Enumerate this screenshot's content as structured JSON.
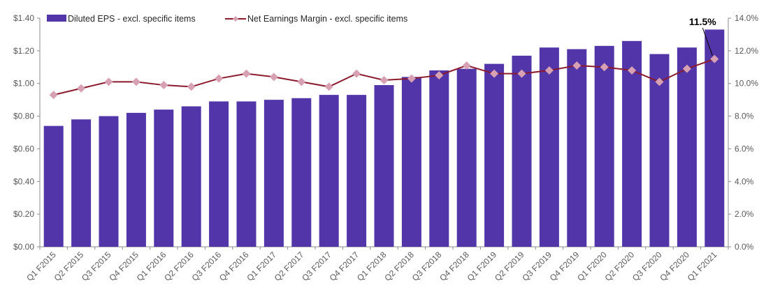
{
  "chart_data": {
    "type": "bar",
    "categories": [
      "Q1 F2015",
      "Q2 F2015",
      "Q3 F2015",
      "Q4 F2015",
      "Q1 F2016",
      "Q2 F2016",
      "Q3 F2016",
      "Q4 F2016",
      "Q1 F2017",
      "Q2 F2017",
      "Q3 F2017",
      "Q4 F2017",
      "Q1 F2018",
      "Q2 F2018",
      "Q3 F2018",
      "Q4 F2018",
      "Q1 F2019",
      "Q2 F2019",
      "Q3 F2019",
      "Q4 F2019",
      "Q1 F2020",
      "Q2 F2020",
      "Q3 F2020",
      "Q4 F2020",
      "Q1 F2021"
    ],
    "series": [
      {
        "name": "Diluted EPS - excl. specific items",
        "type": "bar",
        "axis": "left",
        "color": "#5235a8",
        "values": [
          0.74,
          0.78,
          0.8,
          0.82,
          0.84,
          0.86,
          0.89,
          0.89,
          0.9,
          0.91,
          0.93,
          0.93,
          0.99,
          1.04,
          1.08,
          1.09,
          1.12,
          1.17,
          1.22,
          1.21,
          1.23,
          1.26,
          1.18,
          1.22,
          1.33
        ]
      },
      {
        "name": "Net Earnings Margin - excl. specific items",
        "type": "line",
        "axis": "right",
        "color": "#8b1a2c",
        "marker_color": "#d7a1b3",
        "values": [
          9.3,
          9.7,
          10.1,
          10.1,
          9.9,
          9.8,
          10.3,
          10.6,
          10.4,
          10.1,
          9.8,
          10.6,
          10.2,
          10.3,
          10.5,
          11.1,
          10.6,
          10.6,
          10.8,
          11.1,
          11.0,
          10.8,
          10.1,
          10.9,
          11.5
        ]
      }
    ],
    "y_left": {
      "min": 0,
      "max": 1.4,
      "ticks": [
        "$0.00",
        "$0.20",
        "$0.40",
        "$0.60",
        "$0.80",
        "$1.00",
        "$1.20",
        "$1.40"
      ]
    },
    "y_right": {
      "min": 0,
      "max": 14,
      "ticks": [
        "0.0%",
        "2.0%",
        "4.0%",
        "6.0%",
        "8.0%",
        "10.0%",
        "12.0%",
        "14.0%"
      ]
    },
    "annotation": {
      "text": "11.5%",
      "category_index": 24
    },
    "legend": "top-left",
    "grid": false
  }
}
